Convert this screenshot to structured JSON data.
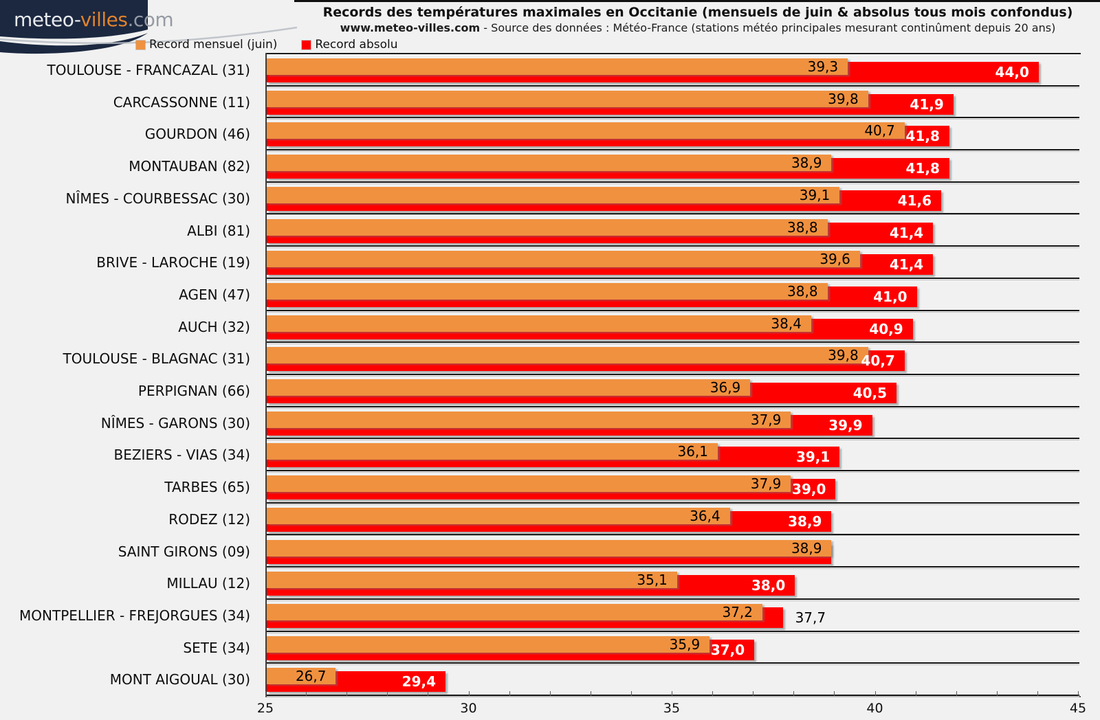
{
  "logo": {
    "part1": "meteo-",
    "part2": "villes",
    "part3": ".com"
  },
  "header": {
    "title": "Records des températures maximales en Occitanie (mensuels de juin & absolus tous mois confondus)",
    "subtitle_bold": "www.meteo-villes.com",
    "subtitle_rest": " - Source des données : Météo-France (stations météo principales mesurant continûment depuis 20 ans)"
  },
  "legend": {
    "items": [
      {
        "label": "Record mensuel (juin)",
        "color": "#F0913F"
      },
      {
        "label": "Record absolu",
        "color": "#FF0000"
      }
    ]
  },
  "colors": {
    "orange": "#F0913F",
    "red": "#FF0000",
    "navy": "#1B2840",
    "background": "#F1F1F1"
  },
  "chart_data": {
    "type": "bar",
    "orientation": "horizontal",
    "title": "Records des températures maximales en Occitanie (mensuels de juin & absolus tous mois confondus)",
    "xlabel": "",
    "ylabel": "",
    "xlim": [
      25,
      45
    ],
    "x_ticks_major": [
      25,
      30,
      35,
      40,
      45
    ],
    "x_minor_step": 1,
    "grid": false,
    "legend_position": "top-left",
    "categories": [
      "TOULOUSE - FRANCAZAL (31)",
      "CARCASSONNE (11)",
      "GOURDON (46)",
      "MONTAUBAN (82)",
      "NÎMES - COURBESSAC (30)",
      "ALBI (81)",
      "BRIVE - LAROCHE (19)",
      "AGEN (47)",
      "AUCH (32)",
      "TOULOUSE - BLAGNAC (31)",
      "PERPIGNAN (66)",
      "NÎMES - GARONS (30)",
      "BEZIERS - VIAS (34)",
      "TARBES (65)",
      "RODEZ (12)",
      "SAINT GIRONS (09)",
      "MILLAU (12)",
      "MONTPELLIER - FREJORGUES (34)",
      "SETE (34)",
      "MONT AIGOUAL (30)"
    ],
    "series": [
      {
        "name": "Record mensuel (juin)",
        "color": "#F0913F",
        "values": [
          39.3,
          39.8,
          40.7,
          38.9,
          39.1,
          38.8,
          39.6,
          38.8,
          38.4,
          39.8,
          36.9,
          37.9,
          36.1,
          37.9,
          36.4,
          38.9,
          35.1,
          37.2,
          35.9,
          26.7
        ]
      },
      {
        "name": "Record absolu",
        "color": "#FF0000",
        "values": [
          44.0,
          41.9,
          41.8,
          41.8,
          41.6,
          41.4,
          41.4,
          41.0,
          40.9,
          40.7,
          40.5,
          39.9,
          39.1,
          39.0,
          38.9,
          38.9,
          38.0,
          37.7,
          37.0,
          29.4
        ]
      }
    ],
    "rows": [
      {
        "label": "TOULOUSE - FRANCAZAL (31)",
        "juin": 39.3,
        "juin_text": "39,3",
        "absolu": 44.0,
        "absolu_text": "44,0",
        "absolu_label_style": "inside"
      },
      {
        "label": "CARCASSONNE (11)",
        "juin": 39.8,
        "juin_text": "39,8",
        "absolu": 41.9,
        "absolu_text": "41,9",
        "absolu_label_style": "inside"
      },
      {
        "label": "GOURDON (46)",
        "juin": 40.7,
        "juin_text": "40,7",
        "absolu": 41.8,
        "absolu_text": "41,8",
        "absolu_label_style": "inside"
      },
      {
        "label": "MONTAUBAN (82)",
        "juin": 38.9,
        "juin_text": "38,9",
        "absolu": 41.8,
        "absolu_text": "41,8",
        "absolu_label_style": "inside"
      },
      {
        "label": "NÎMES - COURBESSAC (30)",
        "juin": 39.1,
        "juin_text": "39,1",
        "absolu": 41.6,
        "absolu_text": "41,6",
        "absolu_label_style": "inside"
      },
      {
        "label": "ALBI (81)",
        "juin": 38.8,
        "juin_text": "38,8",
        "absolu": 41.4,
        "absolu_text": "41,4",
        "absolu_label_style": "inside"
      },
      {
        "label": "BRIVE - LAROCHE (19)",
        "juin": 39.6,
        "juin_text": "39,6",
        "absolu": 41.4,
        "absolu_text": "41,4",
        "absolu_label_style": "inside"
      },
      {
        "label": "AGEN (47)",
        "juin": 38.8,
        "juin_text": "38,8",
        "absolu": 41.0,
        "absolu_text": "41,0",
        "absolu_label_style": "inside"
      },
      {
        "label": "AUCH (32)",
        "juin": 38.4,
        "juin_text": "38,4",
        "absolu": 40.9,
        "absolu_text": "40,9",
        "absolu_label_style": "inside"
      },
      {
        "label": "TOULOUSE - BLAGNAC (31)",
        "juin": 39.8,
        "juin_text": "39,8",
        "absolu": 40.7,
        "absolu_text": "40,7",
        "absolu_label_style": "inside"
      },
      {
        "label": "PERPIGNAN (66)",
        "juin": 36.9,
        "juin_text": "36,9",
        "absolu": 40.5,
        "absolu_text": "40,5",
        "absolu_label_style": "inside"
      },
      {
        "label": "NÎMES - GARONS (30)",
        "juin": 37.9,
        "juin_text": "37,9",
        "absolu": 39.9,
        "absolu_text": "39,9",
        "absolu_label_style": "inside"
      },
      {
        "label": "BEZIERS - VIAS (34)",
        "juin": 36.1,
        "juin_text": "36,1",
        "absolu": 39.1,
        "absolu_text": "39,1",
        "absolu_label_style": "inside"
      },
      {
        "label": "TARBES (65)",
        "juin": 37.9,
        "juin_text": "37,9",
        "absolu": 39.0,
        "absolu_text": "39,0",
        "absolu_label_style": "inside"
      },
      {
        "label": "RODEZ (12)",
        "juin": 36.4,
        "juin_text": "36,4",
        "absolu": 38.9,
        "absolu_text": "38,9",
        "absolu_label_style": "inside"
      },
      {
        "label": "SAINT GIRONS (09)",
        "juin": 38.9,
        "juin_text": "38,9",
        "absolu": 38.9,
        "absolu_text": "",
        "absolu_label_style": "hidden"
      },
      {
        "label": "MILLAU (12)",
        "juin": 35.1,
        "juin_text": "35,1",
        "absolu": 38.0,
        "absolu_text": "38,0",
        "absolu_label_style": "inside"
      },
      {
        "label": "MONTPELLIER - FREJORGUES (34)",
        "juin": 37.2,
        "juin_text": "37,2",
        "absolu": 37.7,
        "absolu_text": "37,7",
        "absolu_label_style": "outside"
      },
      {
        "label": "SETE (34)",
        "juin": 35.9,
        "juin_text": "35,9",
        "absolu": 37.0,
        "absolu_text": "37,0",
        "absolu_label_style": "inside"
      },
      {
        "label": "MONT AIGOUAL (30)",
        "juin": 26.7,
        "juin_text": "26,7",
        "absolu": 29.4,
        "absolu_text": "29,4",
        "absolu_label_style": "inside"
      }
    ],
    "x_tick_labels": [
      "25",
      "30",
      "35",
      "40",
      "45"
    ]
  }
}
